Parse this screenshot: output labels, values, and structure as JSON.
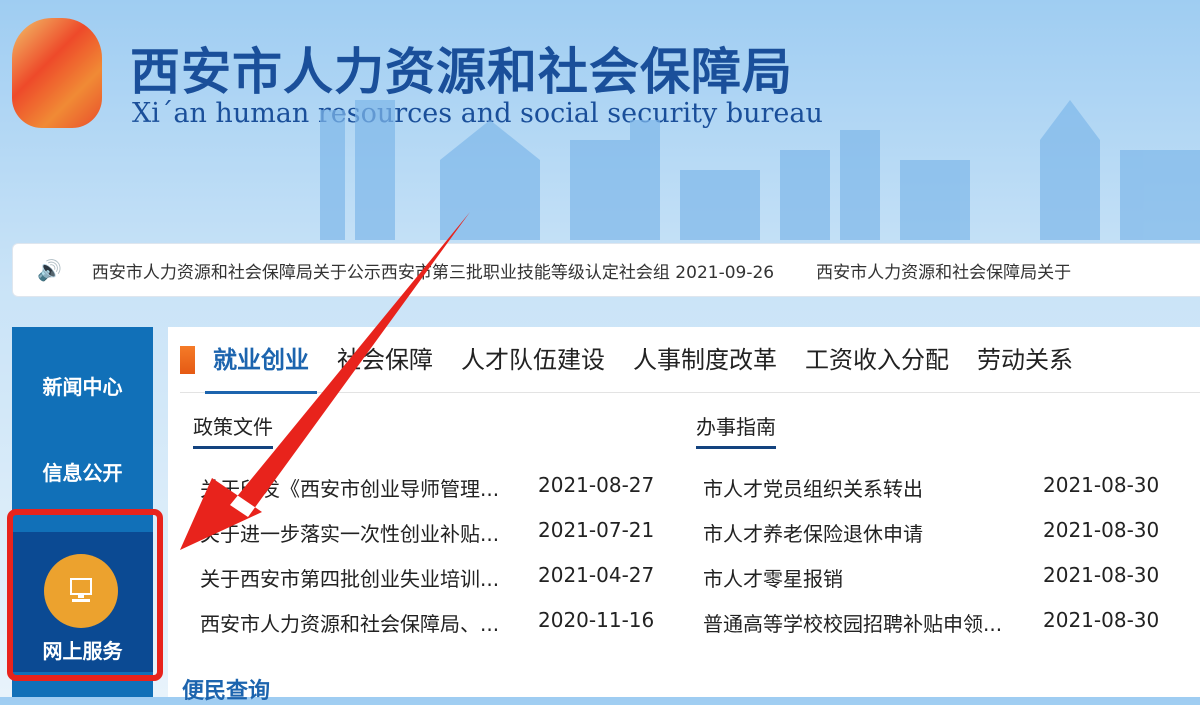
{
  "header": {
    "title_cn": "西安市人力资源和社会保障局",
    "title_en": "Xi´an human resources and social security bureau"
  },
  "ticker": {
    "icon": "speaker-icon",
    "items": [
      "西安市人力资源和社会保障局关于公示西安市第三批职业技能等级认定社会组 2021-09-26",
      "西安市人力资源和社会保障局关于"
    ]
  },
  "sidebar": {
    "items": [
      {
        "label": "新闻中心"
      },
      {
        "label": "信息公开"
      },
      {
        "label": "网上服务",
        "icon": "computer-icon",
        "active": true
      }
    ]
  },
  "tabs": [
    {
      "label": "就业创业",
      "active": true
    },
    {
      "label": "社会保障"
    },
    {
      "label": "人才队伍建设"
    },
    {
      "label": "人事制度改革"
    },
    {
      "label": "工资收入分配"
    },
    {
      "label": "劳动关系"
    }
  ],
  "policy": {
    "title": "政策文件",
    "rows": [
      {
        "title": "关于印发《西安市创业导师管理...",
        "date": "2021-08-27"
      },
      {
        "title": "关于进一步落实一次性创业补贴...",
        "date": "2021-07-21"
      },
      {
        "title": "关于西安市第四批创业失业培训...",
        "date": "2021-04-27"
      },
      {
        "title": "西安市人力资源和社会保障局、...",
        "date": "2020-11-16"
      }
    ]
  },
  "guide": {
    "title": "办事指南",
    "rows": [
      {
        "title": "市人才党员组织关系转出",
        "date": "2021-08-30"
      },
      {
        "title": "市人才养老保险退休申请",
        "date": "2021-08-30"
      },
      {
        "title": "市人才零星报销",
        "date": "2021-08-30"
      },
      {
        "title": "普通高等学校校园招聘补贴申领...",
        "date": "2021-08-30"
      }
    ]
  },
  "quick": {
    "title": "便民查询"
  },
  "colors": {
    "brand": "#1a4f9a",
    "sidebar": "#1170b8",
    "sidebar_active": "#0b4a93",
    "accent": "#f57b28",
    "annotation": "#e8231c"
  }
}
